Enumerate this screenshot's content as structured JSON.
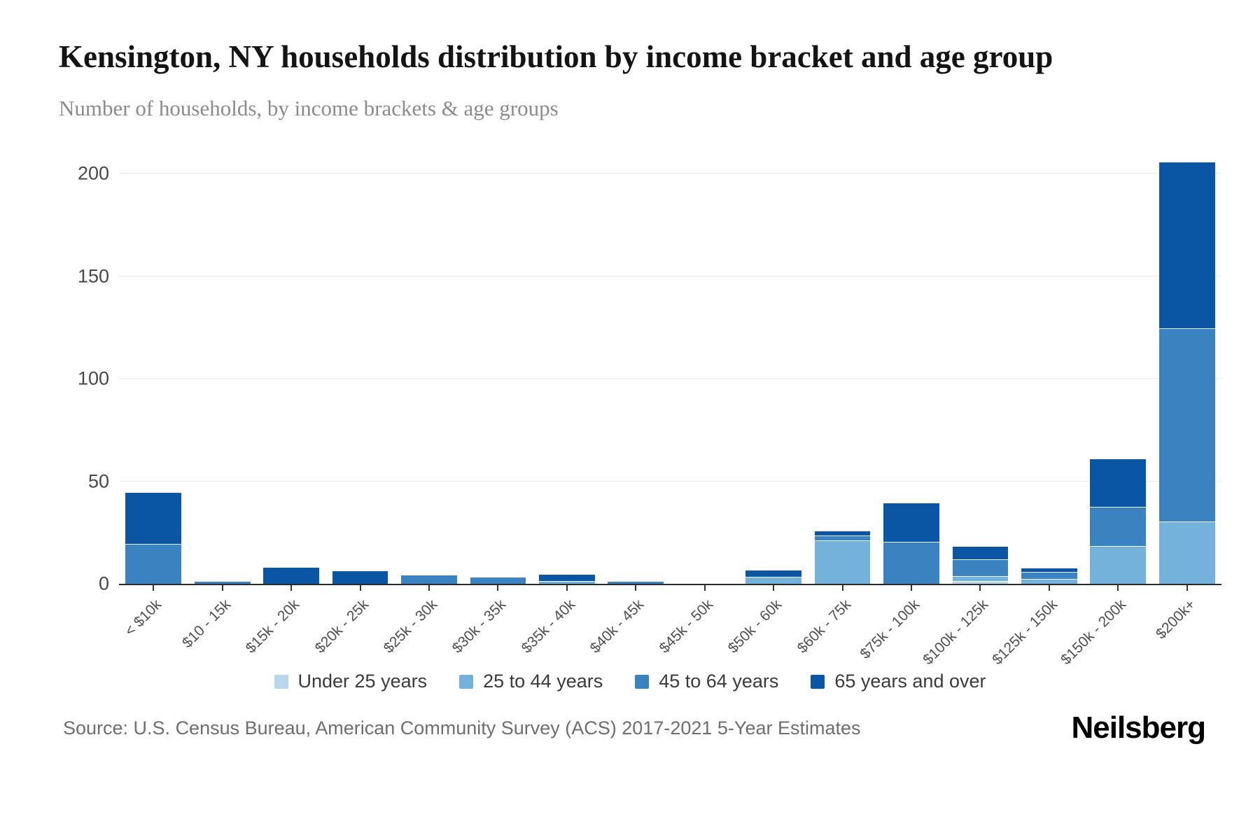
{
  "title": "Kensington, NY households distribution by income bracket and age group",
  "subtitle": "Number of households, by income brackets & age groups",
  "source": "Source: U.S. Census Bureau, American Community Survey (ACS) 2017-2021 5-Year Estimates",
  "brand": "Neilsberg",
  "colors": {
    "axis_line": "#2b2b2b",
    "gridline": "#ebebeb",
    "title_text": "#141414",
    "subtitle_text": "#8b8b8b",
    "tick_text": "#4f4f4f"
  },
  "chart_data": {
    "type": "bar",
    "stacked": true,
    "title": "Kensington, NY households distribution by income bracket and age group",
    "xlabel": "",
    "ylabel": "Number of households",
    "grid": true,
    "legend_position": "bottom",
    "yticks": [
      0,
      50,
      100,
      150,
      200
    ],
    "ylim": [
      0,
      210
    ],
    "categories": [
      "< $10k",
      "$10 - 15k",
      "$15k - 20k",
      "$20k - 25k",
      "$25k - 30k",
      "$30k - 35k",
      "$35k - 40k",
      "$40k - 45k",
      "$45k - 50k",
      "$50k - 60k",
      "$60k - 75k",
      "$75k - 100k",
      "$100k - 125k",
      "$125k - 150k",
      "$150k - 200k",
      "$200k+"
    ],
    "series": [
      {
        "name": "Under 25 years",
        "color": "#b9d7ea",
        "values": [
          0,
          0,
          0,
          0,
          0,
          0,
          0,
          0,
          0,
          0,
          0,
          0,
          1,
          0,
          0,
          0
        ]
      },
      {
        "name": "25 to 44 years",
        "color": "#74b2dc",
        "values": [
          0,
          0,
          0,
          0,
          0,
          0,
          1,
          0,
          0,
          3,
          21,
          0,
          2,
          2,
          18,
          30
        ]
      },
      {
        "name": "45 to 64 years",
        "color": "#3a82c0",
        "values": [
          19,
          1,
          0,
          0,
          4,
          3,
          0,
          1,
          0,
          0,
          2,
          20,
          8,
          3,
          19,
          94
        ]
      },
      {
        "name": "65 years and over",
        "color": "#0b56a4",
        "values": [
          25,
          0,
          8,
          6,
          0,
          0,
          3,
          0,
          0,
          3,
          2,
          19,
          6,
          2,
          23,
          81
        ]
      }
    ],
    "totals": [
      44,
      1,
      8,
      6,
      4,
      3,
      4,
      1,
      0,
      6,
      25,
      39,
      17,
      7,
      60,
      205
    ]
  }
}
